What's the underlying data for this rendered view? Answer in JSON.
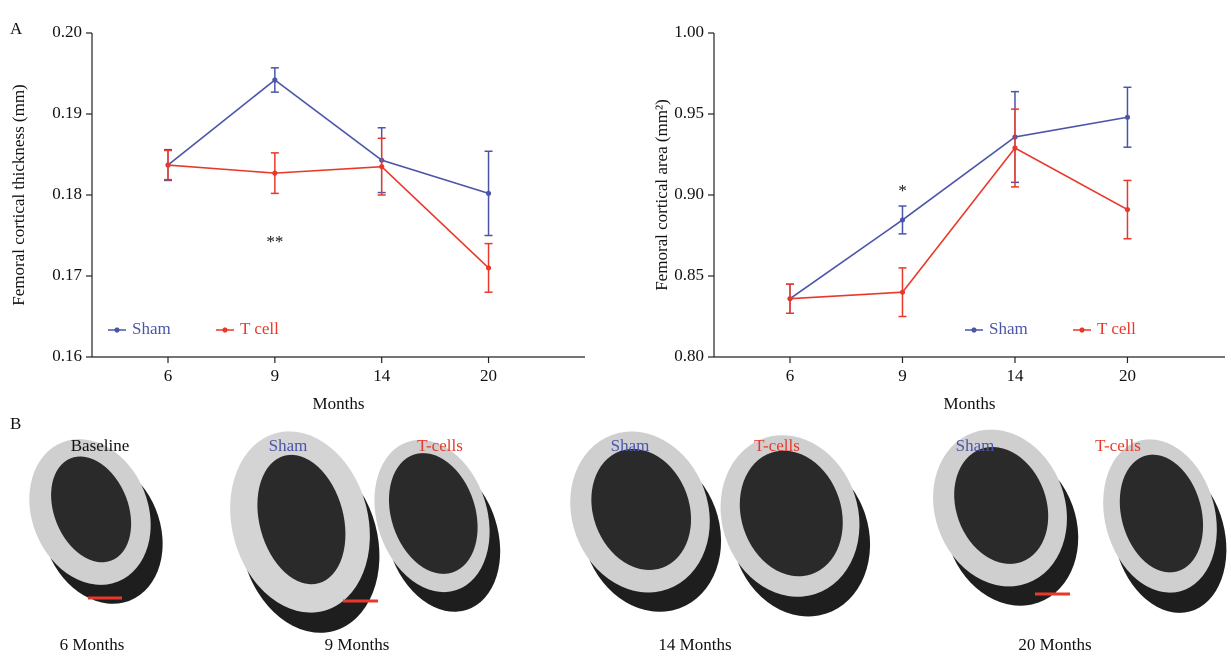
{
  "panel_labels": [
    "A",
    "B"
  ],
  "chart_data": [
    {
      "type": "line",
      "y_label": "Femoral cortical thickness (mm)",
      "x_label": "Months",
      "categories": [
        "6",
        "9",
        "14",
        "20"
      ],
      "series": [
        {
          "name": "Sham",
          "color": "#4b55a8",
          "values": [
            0.1837,
            0.1942,
            0.1843,
            0.1802
          ],
          "errors": [
            0.0019,
            0.0015,
            0.004,
            0.0052
          ]
        },
        {
          "name": "T cell",
          "color": "#e8382a",
          "values": [
            0.1837,
            0.1827,
            0.1835,
            0.171
          ],
          "errors": [
            0.0018,
            0.0025,
            0.0035,
            0.003
          ]
        }
      ],
      "ylim": [
        0.16,
        0.2
      ],
      "yticks": [
        0.16,
        0.17,
        0.18,
        0.19,
        {
          "value": 0.2,
          "label": "0.20"
        }
      ],
      "annotations": [
        "**"
      ],
      "legend": "lower left"
    },
    {
      "type": "line",
      "y_label": "Femoral cortical area (mm²)",
      "x_label": "Months",
      "categories": [
        "6",
        "9",
        "14",
        "20"
      ],
      "series": [
        {
          "name": "Sham",
          "color": "#4b55a8",
          "values": [
            0.836,
            0.8846,
            0.9358,
            0.948
          ],
          "errors": [
            0.009,
            0.0086,
            0.028,
            0.0185
          ]
        },
        {
          "name": "T cell",
          "color": "#e8382a",
          "values": [
            0.836,
            0.84,
            0.929,
            0.891
          ],
          "errors": [
            0.009,
            0.015,
            0.024,
            0.018
          ]
        }
      ],
      "ylim": [
        0.8,
        1.0
      ],
      "yticks": [
        {
          "value": 0.8,
          "label": "0.80"
        },
        0.85,
        {
          "value": 0.9,
          "label": "0.90"
        },
        0.95,
        {
          "value": 1.0,
          "label": "1.00"
        }
      ],
      "annotations": [
        "*"
      ],
      "legend": "lower right"
    }
  ],
  "panel_b": {
    "group_labels": [
      "Baseline",
      "Sham",
      "T-cells",
      "Sham",
      "T-cells",
      "Sham",
      "T-cells"
    ],
    "time_labels": [
      "6 Months",
      "9 Months",
      "14 Months",
      "20 Months"
    ]
  }
}
